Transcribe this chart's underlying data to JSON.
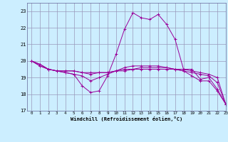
{
  "xlabel": "Windchill (Refroidissement éolien,°C)",
  "background_color": "#cceeff",
  "grid_color": "#9999bb",
  "line_color": "#990099",
  "hours": [
    0,
    1,
    2,
    3,
    4,
    5,
    6,
    7,
    8,
    9,
    10,
    11,
    12,
    13,
    14,
    15,
    16,
    17,
    18,
    19,
    20,
    21,
    22,
    23
  ],
  "series1": [
    20.0,
    19.7,
    19.5,
    19.4,
    19.3,
    19.2,
    18.5,
    18.1,
    18.2,
    19.1,
    20.4,
    21.9,
    22.9,
    22.6,
    22.5,
    22.8,
    22.2,
    21.3,
    19.5,
    19.5,
    18.9,
    19.0,
    18.3,
    17.4
  ],
  "series2": [
    20.0,
    19.7,
    19.5,
    19.4,
    19.4,
    19.4,
    19.3,
    19.3,
    19.3,
    19.3,
    19.4,
    19.5,
    19.5,
    19.6,
    19.6,
    19.6,
    19.6,
    19.5,
    19.5,
    19.4,
    19.3,
    19.2,
    19.0,
    17.4
  ],
  "series3": [
    20.0,
    19.8,
    19.5,
    19.4,
    19.4,
    19.4,
    19.3,
    19.2,
    19.3,
    19.3,
    19.4,
    19.4,
    19.5,
    19.5,
    19.5,
    19.5,
    19.5,
    19.5,
    19.4,
    19.3,
    19.2,
    19.1,
    18.7,
    17.4
  ],
  "series4": [
    20.0,
    19.8,
    19.5,
    19.4,
    19.3,
    19.2,
    19.1,
    18.8,
    19.0,
    19.2,
    19.4,
    19.6,
    19.7,
    19.7,
    19.7,
    19.7,
    19.6,
    19.5,
    19.4,
    19.1,
    18.8,
    18.8,
    18.2,
    17.4
  ],
  "ylim": [
    17,
    23.5
  ],
  "xlim": [
    -0.5,
    23
  ],
  "yticks": [
    17,
    18,
    19,
    20,
    21,
    22,
    23
  ],
  "xticks": [
    0,
    1,
    2,
    3,
    4,
    5,
    6,
    7,
    8,
    9,
    10,
    11,
    12,
    13,
    14,
    15,
    16,
    17,
    18,
    19,
    20,
    21,
    22,
    23
  ],
  "fig_width": 3.2,
  "fig_height": 2.0,
  "dpi": 100
}
